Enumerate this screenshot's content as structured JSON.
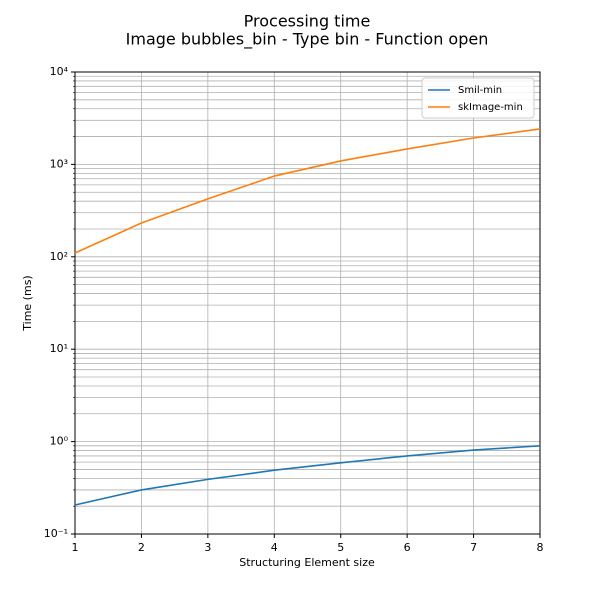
{
  "chart_data": {
    "type": "line",
    "title": "Processing time",
    "subtitle": "Image bubbles_bin - Type bin - Function open",
    "x_label": "Structuring Element size",
    "y_label": "Time (ms)",
    "x": [
      1,
      2,
      3,
      4,
      5,
      6,
      7,
      8
    ],
    "series": [
      {
        "name": "Smil-min",
        "color": "#1f77b4",
        "values": [
          0.206,
          0.3,
          0.39,
          0.49,
          0.59,
          0.7,
          0.81,
          0.9
        ]
      },
      {
        "name": "skImage-min",
        "color": "#ff7f0e",
        "values": [
          110,
          232,
          423,
          748,
          1090,
          1470,
          1930,
          2420
        ]
      }
    ],
    "xlim": [
      1,
      8
    ],
    "xticks": [
      1,
      2,
      3,
      4,
      5,
      6,
      7,
      8
    ],
    "ylim": [
      0.1,
      10000
    ],
    "yticks": [
      {
        "value": 0.1,
        "label": "10⁻¹"
      },
      {
        "value": 1,
        "label": "10⁰"
      },
      {
        "value": 10,
        "label": "10¹"
      },
      {
        "value": 100,
        "label": "10²"
      },
      {
        "value": 1000,
        "label": "10³"
      },
      {
        "value": 10000,
        "label": "10⁴"
      }
    ],
    "yminorticks": [
      0.2,
      0.3,
      0.4,
      0.5,
      0.6,
      0.7,
      0.8,
      0.9,
      2,
      3,
      4,
      5,
      6,
      7,
      8,
      9,
      20,
      30,
      40,
      50,
      60,
      70,
      80,
      90,
      200,
      300,
      400,
      500,
      600,
      700,
      800,
      900,
      2000,
      3000,
      4000,
      5000,
      6000,
      7000,
      8000,
      9000
    ],
    "ylog": true,
    "grid": true,
    "minor_grid": true,
    "legend": "upper right"
  }
}
